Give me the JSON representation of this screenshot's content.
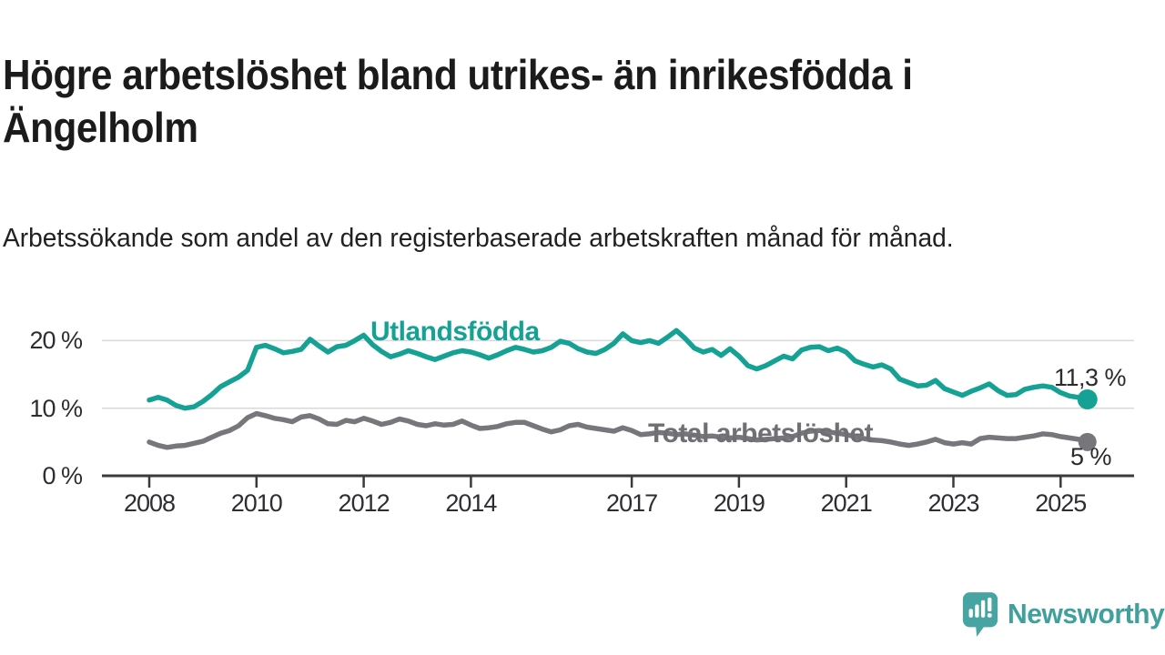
{
  "header": {
    "title": "Högre arbetslöshet bland utrikes- än inrikesfödda i Ängelholm",
    "subtitle": "Arbetssökande som andel av den registerbaserade arbetskraften månad för månad."
  },
  "branding": {
    "name": "Newsworthy",
    "logo_icon": "bar-chart-speech-bubble",
    "brand_color": "#3fa09d"
  },
  "chart_data": {
    "type": "line",
    "unit": "%",
    "grid": "horizontal-gridlines",
    "x_start_year": 2008,
    "x_step_months": 2,
    "x_end_year": 2025.5,
    "ylim": [
      0,
      22.5
    ],
    "y_ticks": [
      {
        "value": 0,
        "label": "0 %"
      },
      {
        "value": 10,
        "label": "10 %"
      },
      {
        "value": 20,
        "label": "20 %"
      }
    ],
    "x_ticks": [
      {
        "year": 2008,
        "label": "2008"
      },
      {
        "year": 2010,
        "label": "2010"
      },
      {
        "year": 2012,
        "label": "2012"
      },
      {
        "year": 2014,
        "label": "2014"
      },
      {
        "year": 2017,
        "label": "2017"
      },
      {
        "year": 2019,
        "label": "2019"
      },
      {
        "year": 2021,
        "label": "2021"
      },
      {
        "year": 2023,
        "label": "2023"
      },
      {
        "year": 2025,
        "label": "2025"
      }
    ],
    "series": [
      {
        "name": "Utlandsfödda",
        "color": "#16a195",
        "end_label": "11,3 %",
        "end_value": 11.3,
        "values": [
          11.2,
          11.6,
          11.2,
          10.4,
          10.0,
          10.2,
          11.0,
          12.0,
          13.2,
          13.9,
          14.6,
          15.6,
          19.0,
          19.3,
          18.8,
          18.2,
          18.4,
          18.7,
          20.2,
          19.2,
          18.3,
          19.1,
          19.3,
          20.0,
          20.8,
          19.4,
          18.4,
          17.6,
          18.0,
          18.5,
          18.1,
          17.6,
          17.2,
          17.7,
          18.2,
          18.5,
          18.3,
          17.9,
          17.4,
          17.9,
          18.5,
          19.0,
          18.7,
          18.3,
          18.5,
          19.0,
          19.9,
          19.6,
          18.8,
          18.3,
          18.1,
          18.7,
          19.6,
          21.0,
          20.0,
          19.7,
          20.0,
          19.6,
          20.5,
          21.5,
          20.3,
          18.9,
          18.3,
          18.7,
          17.8,
          18.8,
          17.7,
          16.3,
          15.8,
          16.3,
          17.0,
          17.7,
          17.3,
          18.6,
          19.0,
          19.1,
          18.5,
          18.9,
          18.3,
          17.0,
          16.5,
          16.1,
          16.4,
          15.8,
          14.3,
          13.8,
          13.3,
          13.4,
          14.1,
          12.9,
          12.4,
          11.9,
          12.5,
          13.0,
          13.6,
          12.6,
          11.9,
          12.0,
          12.8,
          13.1,
          13.3,
          13.1,
          12.3,
          11.8,
          11.6,
          11.3
        ]
      },
      {
        "name": "Total arbetslöshet",
        "color": "#77777b",
        "label_color": "#6f6f74",
        "end_label": "5 %",
        "end_value": 5.0,
        "values": [
          5.0,
          4.5,
          4.2,
          4.4,
          4.5,
          4.8,
          5.1,
          5.7,
          6.3,
          6.7,
          7.4,
          8.6,
          9.2,
          8.9,
          8.5,
          8.3,
          8.0,
          8.7,
          8.9,
          8.4,
          7.7,
          7.6,
          8.2,
          8.0,
          8.5,
          8.1,
          7.6,
          7.9,
          8.4,
          8.1,
          7.6,
          7.4,
          7.7,
          7.5,
          7.6,
          8.1,
          7.5,
          7.0,
          7.1,
          7.3,
          7.7,
          7.9,
          7.9,
          7.4,
          6.9,
          6.5,
          6.8,
          7.4,
          7.6,
          7.2,
          7.0,
          6.8,
          6.6,
          7.1,
          6.7,
          6.1,
          6.2,
          6.4,
          6.3,
          6.1,
          6.2,
          6.0,
          5.8,
          5.9,
          5.7,
          5.6,
          5.7,
          5.5,
          5.3,
          5.4,
          5.5,
          5.6,
          5.8,
          6.3,
          6.6,
          6.7,
          6.5,
          6.3,
          6.1,
          5.8,
          5.5,
          5.3,
          5.2,
          5.0,
          4.7,
          4.5,
          4.7,
          5.0,
          5.4,
          4.9,
          4.7,
          4.9,
          4.7,
          5.5,
          5.7,
          5.6,
          5.5,
          5.5,
          5.7,
          5.9,
          6.2,
          6.1,
          5.8,
          5.6,
          5.4,
          5.0
        ]
      }
    ],
    "axis_color": "#3a3a3e",
    "gridline_color": "#d9d9d9"
  }
}
